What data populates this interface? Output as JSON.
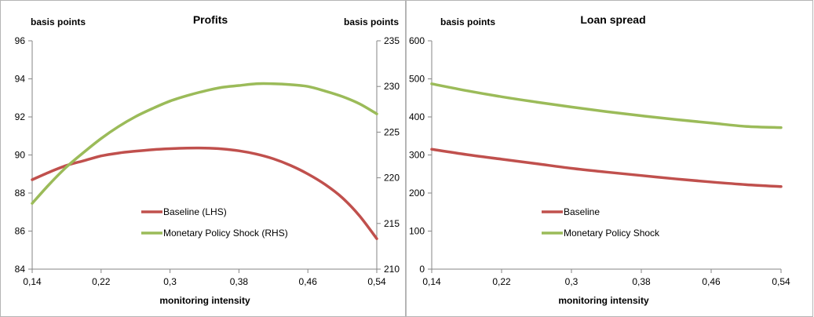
{
  "chart_data": [
    {
      "type": "line",
      "title": "Profits",
      "xlabel": "monitoring intensity",
      "ylabel_left": "basis points",
      "ylabel_right": "basis points",
      "x_ticks": [
        "0,14",
        "0,22",
        "0,3",
        "0,38",
        "0,46",
        "0,54"
      ],
      "xlim": [
        0.14,
        0.54
      ],
      "ylim_left": [
        84,
        96
      ],
      "yticks_left": [
        "84",
        "86",
        "88",
        "90",
        "92",
        "94",
        "96"
      ],
      "ylim_right": [
        210,
        235
      ],
      "yticks_right": [
        "210",
        "215",
        "220",
        "225",
        "230",
        "235"
      ],
      "grid": false,
      "legend_position": "lower-center",
      "x": [
        0.14,
        0.16,
        0.18,
        0.2,
        0.22,
        0.24,
        0.26,
        0.28,
        0.3,
        0.32,
        0.34,
        0.36,
        0.38,
        0.4,
        0.42,
        0.44,
        0.46,
        0.48,
        0.5,
        0.52,
        0.54
      ],
      "series": [
        {
          "name": "Baseline (LHS)",
          "axis": "left",
          "color": "#c0504d",
          "values": [
            88.7,
            89.1,
            89.45,
            89.7,
            89.95,
            90.1,
            90.2,
            90.28,
            90.33,
            90.36,
            90.36,
            90.32,
            90.22,
            90.05,
            89.8,
            89.45,
            89.0,
            88.45,
            87.75,
            86.8,
            85.6
          ]
        },
        {
          "name": "Monetary Policy Shock (RHS)",
          "axis": "right",
          "color": "#9bbb59",
          "values": [
            217.2,
            219.3,
            221.2,
            222.8,
            224.3,
            225.6,
            226.7,
            227.6,
            228.4,
            229.0,
            229.5,
            229.9,
            230.1,
            230.3,
            230.3,
            230.2,
            230.0,
            229.5,
            228.9,
            228.1,
            227.0
          ]
        }
      ]
    },
    {
      "type": "line",
      "title": "Loan spread",
      "xlabel": "monitoring intensity",
      "ylabel": "basis points",
      "x_ticks": [
        "0,14",
        "0,22",
        "0,3",
        "0,38",
        "0,46",
        "0,54"
      ],
      "xlim": [
        0.14,
        0.54
      ],
      "ylim": [
        0,
        600
      ],
      "yticks": [
        "0",
        "100",
        "200",
        "300",
        "400",
        "500",
        "600"
      ],
      "grid": false,
      "legend_position": "lower-center",
      "x": [
        0.14,
        0.18,
        0.22,
        0.26,
        0.3,
        0.34,
        0.38,
        0.42,
        0.46,
        0.5,
        0.54
      ],
      "series": [
        {
          "name": "Baseline",
          "color": "#c0504d",
          "values": [
            315,
            301,
            289,
            277,
            265,
            255,
            246,
            237,
            229,
            222,
            217
          ]
        },
        {
          "name": "Monetary Policy Shock",
          "color": "#9bbb59",
          "values": [
            487,
            469,
            453,
            439,
            426,
            414,
            403,
            393,
            384,
            375,
            372
          ]
        }
      ]
    }
  ]
}
